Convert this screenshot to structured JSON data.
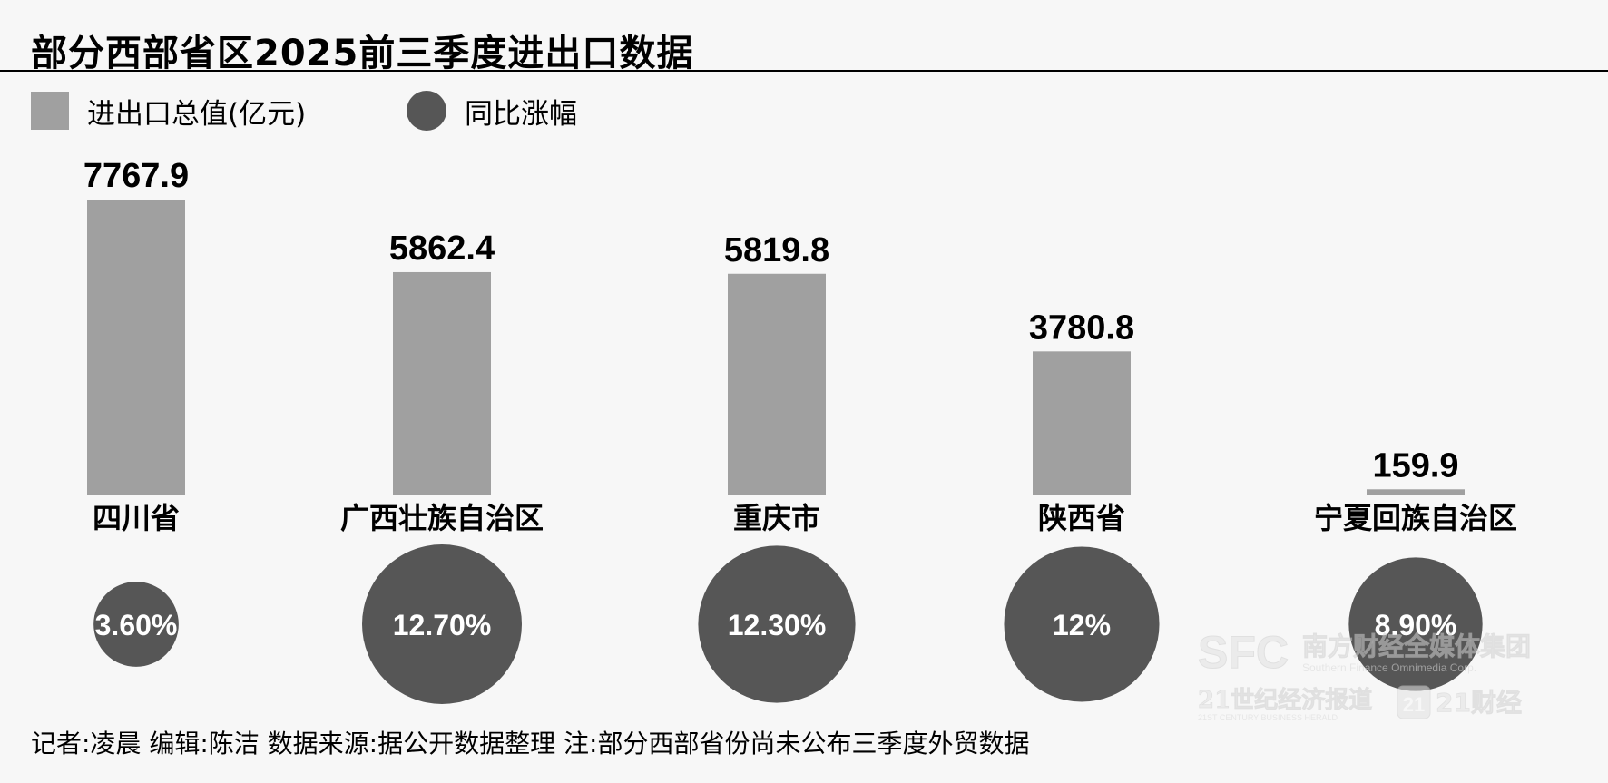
{
  "title": "部分西部省区2025前三季度进出口数据",
  "legend": {
    "bar_label": "进出口总值(亿元)",
    "dot_label": "同比涨幅"
  },
  "colors": {
    "bar": "#a0a0a0",
    "dot": "#565656",
    "background": "#f7f7f7"
  },
  "footer": "记者:凌晨   编辑:陈洁   数据来源:据公开数据整理   注:部分西部省份尚未公布三季度外贸数据",
  "watermark": {
    "brand": "SFC",
    "brand_cn": "南方财经全媒体集团",
    "brand_en": "Southern Finance Omnimedia Corp.",
    "sub_left": "21世纪经济报道",
    "sub_left_en": "21ST CENTURY BUSINESS HERALD",
    "sub_right": "21财经",
    "sub_badge": "21"
  },
  "chart_data": {
    "type": "bar",
    "categories": [
      "四川省",
      "广西壮族自治区",
      "重庆市",
      "陕西省",
      "宁夏回族自治区"
    ],
    "series": [
      {
        "name": "进出口总值(亿元)",
        "values": [
          7767.9,
          5862.4,
          5819.8,
          3780.8,
          159.9
        ],
        "value_labels": [
          "7767.9",
          "5862.4",
          "5819.8",
          "3780.8",
          "159.9"
        ]
      },
      {
        "name": "同比涨幅",
        "values": [
          3.6,
          12.7,
          12.3,
          12,
          8.9
        ],
        "value_labels": [
          "3.60%",
          "12.70%",
          "12.30%",
          "12%",
          "8.90%"
        ]
      }
    ],
    "ylim": [
      0,
      7767.9
    ],
    "grid": false,
    "legend_position": "top-left"
  }
}
